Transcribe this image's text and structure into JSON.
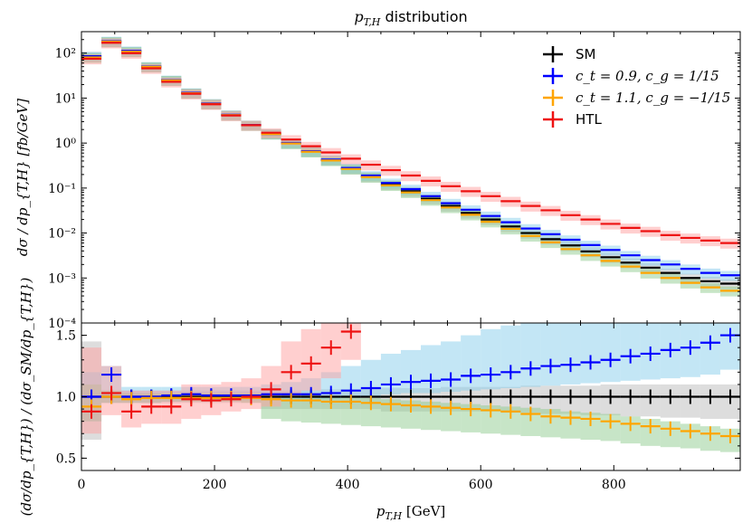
{
  "chart_data": {
    "type": "line",
    "title": "p_{T,H} distribution",
    "title_parts": {
      "math": "p",
      "sub": "T,H",
      "rest": "distribution"
    },
    "xlabel": "p_{T,H} [GeV]",
    "xlabel_parts": {
      "math": "p",
      "sub": "T,H",
      "unit": "[GeV]"
    },
    "x_ticks": [
      0,
      200,
      400,
      600,
      800
    ],
    "x_tick_labels": [
      "0",
      "200",
      "400",
      "600",
      "800"
    ],
    "xlim": [
      0,
      990
    ],
    "bin_edges": [
      0,
      30,
      60,
      90,
      120,
      150,
      180,
      210,
      240,
      270,
      300,
      330,
      360,
      390,
      420,
      450,
      480,
      510,
      540,
      570,
      600,
      630,
      660,
      690,
      720,
      750,
      780,
      810,
      840,
      870,
      900,
      930,
      960,
      990
    ],
    "top_panel": {
      "ylabel": "dσ / dp_{T,H} [fb/GeV]",
      "yscale": "log",
      "ylim": [
        0.0001,
        300
      ],
      "y_ticks": [
        0.0001,
        0.001,
        0.01,
        0.1,
        1,
        10,
        100
      ],
      "y_tick_labels": [
        "10⁻⁴",
        "10⁻³",
        "10⁻²",
        "10⁻¹",
        "10⁰",
        "10¹",
        "10²"
      ],
      "band_rel": [
        0.75,
        1.25
      ],
      "series": [
        {
          "name": "SM",
          "color": "#000000",
          "values": [
            85,
            180,
            110,
            50,
            25,
            13,
            7.5,
            4.2,
            2.5,
            1.6,
            1.0,
            0.65,
            0.42,
            0.27,
            0.18,
            0.12,
            0.085,
            0.058,
            0.04,
            0.028,
            0.02,
            0.014,
            0.01,
            0.0073,
            0.0053,
            0.0039,
            0.0029,
            0.0022,
            0.0017,
            0.0013,
            0.001,
            0.00085,
            0.00075
          ]
        },
        {
          "name": "c_t = 0.9, c_g = 1/15",
          "color": "#0000ff",
          "values": [
            85,
            185,
            112,
            50.5,
            25.2,
            13.2,
            7.6,
            4.25,
            2.53,
            1.62,
            1.01,
            0.66,
            0.43,
            0.28,
            0.19,
            0.13,
            0.095,
            0.066,
            0.046,
            0.033,
            0.024,
            0.0174,
            0.0126,
            0.0094,
            0.0071,
            0.0054,
            0.0042,
            0.0032,
            0.0025,
            0.002,
            0.0016,
            0.0013,
            0.00115
          ]
        },
        {
          "name": "c_t = 1.1, c_g = −1/15",
          "color": "#ffa500",
          "values": [
            80,
            180,
            108,
            49.5,
            24.8,
            12.9,
            7.45,
            4.18,
            2.49,
            1.6,
            0.98,
            0.64,
            0.41,
            0.265,
            0.175,
            0.115,
            0.08,
            0.054,
            0.037,
            0.0255,
            0.0178,
            0.0124,
            0.0086,
            0.0062,
            0.0044,
            0.0032,
            0.0024,
            0.0018,
            0.0013,
            0.001,
            0.00078,
            0.00062,
            0.00052
          ]
        },
        {
          "name": "HTL",
          "color": "#ee1111",
          "values": [
            75,
            170,
            100,
            46,
            23,
            12.5,
            7.3,
            4.1,
            2.5,
            1.7,
            1.2,
            0.85,
            0.62,
            0.45,
            0.33,
            0.25,
            0.19,
            0.145,
            0.11,
            0.085,
            0.066,
            0.051,
            0.04,
            0.032,
            0.025,
            0.02,
            0.016,
            0.013,
            0.011,
            0.009,
            0.0078,
            0.0068,
            0.006
          ]
        }
      ]
    },
    "bottom_panel": {
      "ylabel": "(dσ/dp_{T,H}) / (dσ_SM/dp_{T,H})",
      "ylim": [
        0.4,
        1.6
      ],
      "y_ticks": [
        0.5,
        1.0,
        1.5
      ],
      "y_tick_labels": [
        "0.5",
        "1.0",
        "1.5"
      ],
      "series": [
        {
          "name": "SM",
          "color": "#000000",
          "band_color": "#bbbbbb",
          "values": [
            1,
            1,
            1,
            1,
            1,
            1,
            1,
            1,
            1,
            1,
            1,
            1,
            1,
            1,
            1,
            1,
            1,
            1,
            1,
            1,
            1,
            1,
            1,
            1,
            1,
            1,
            1,
            1,
            1,
            1,
            1,
            1,
            1
          ],
          "band_low": [
            0.65,
            0.95,
            0.95,
            0.95,
            0.95,
            0.95,
            0.95,
            0.95,
            0.95,
            0.9,
            0.9,
            0.9,
            0.9,
            0.9,
            0.9,
            0.88,
            0.88,
            0.88,
            0.88,
            0.88,
            0.88,
            0.87,
            0.87,
            0.86,
            0.86,
            0.85,
            0.85,
            0.84,
            0.84,
            0.83,
            0.83,
            0.82,
            0.82
          ],
          "band_high": [
            1.45,
            1.05,
            1.05,
            1.05,
            1.05,
            1.05,
            1.05,
            1.05,
            1.05,
            1.05,
            1.05,
            1.05,
            1.06,
            1.06,
            1.06,
            1.07,
            1.07,
            1.07,
            1.08,
            1.08,
            1.08,
            1.08,
            1.09,
            1.09,
            1.09,
            1.09,
            1.1,
            1.1,
            1.1,
            1.1,
            1.1,
            1.1,
            1.1
          ]
        },
        {
          "name": "c_t = 0.9, c_g = 1/15",
          "color": "#0000ff",
          "band_color": "#87ceeb",
          "values": [
            1.0,
            1.18,
            1.0,
            1.0,
            1.01,
            1.02,
            1.01,
            1.01,
            1.01,
            1.02,
            1.02,
            1.02,
            1.03,
            1.05,
            1.07,
            1.1,
            1.12,
            1.13,
            1.14,
            1.17,
            1.18,
            1.2,
            1.23,
            1.25,
            1.26,
            1.28,
            1.3,
            1.33,
            1.35,
            1.38,
            1.4,
            1.44,
            1.5
          ],
          "band_low": [
            0.8,
            0.95,
            0.95,
            0.95,
            0.96,
            0.97,
            0.97,
            0.97,
            0.97,
            0.97,
            0.97,
            0.97,
            0.98,
            0.99,
            1.0,
            1.02,
            1.03,
            1.03,
            1.04,
            1.05,
            1.06,
            1.07,
            1.08,
            1.09,
            1.1,
            1.11,
            1.12,
            1.13,
            1.14,
            1.15,
            1.16,
            1.18,
            1.22
          ],
          "band_high": [
            1.2,
            1.25,
            1.08,
            1.08,
            1.08,
            1.08,
            1.08,
            1.08,
            1.08,
            1.1,
            1.12,
            1.15,
            1.2,
            1.25,
            1.3,
            1.35,
            1.38,
            1.42,
            1.45,
            1.5,
            1.55,
            1.58,
            1.6,
            1.6,
            1.6,
            1.6,
            1.6,
            1.6,
            1.6,
            1.6,
            1.6,
            1.6,
            1.6
          ]
        },
        {
          "name": "c_t = 1.1, c_g = −1/15",
          "color": "#ffa500",
          "band_color": "#8fcc8f",
          "values": [
            0.92,
            1.0,
            0.98,
            0.99,
            0.99,
            0.99,
            0.99,
            0.99,
            0.99,
            0.98,
            0.97,
            0.97,
            0.96,
            0.96,
            0.95,
            0.94,
            0.93,
            0.92,
            0.91,
            0.9,
            0.89,
            0.88,
            0.86,
            0.84,
            0.83,
            0.82,
            0.8,
            0.78,
            0.76,
            0.74,
            0.72,
            0.7,
            0.68
          ],
          "band_low": [
            0.8,
            0.95,
            0.95,
            0.95,
            0.96,
            0.96,
            0.96,
            0.96,
            0.95,
            0.82,
            0.8,
            0.79,
            0.78,
            0.77,
            0.76,
            0.75,
            0.74,
            0.73,
            0.72,
            0.71,
            0.7,
            0.69,
            0.68,
            0.67,
            0.66,
            0.65,
            0.64,
            0.62,
            0.6,
            0.59,
            0.58,
            0.56,
            0.55
          ],
          "band_high": [
            1.1,
            1.05,
            1.03,
            1.03,
            1.03,
            1.03,
            1.03,
            1.03,
            1.03,
            1.02,
            1.02,
            1.01,
            1.0,
            1.0,
            0.99,
            0.98,
            0.97,
            0.96,
            0.95,
            0.94,
            0.93,
            0.92,
            0.91,
            0.9,
            0.88,
            0.87,
            0.86,
            0.84,
            0.82,
            0.8,
            0.78,
            0.76,
            0.74
          ]
        },
        {
          "name": "HTL",
          "color": "#ee1111",
          "band_color": "#ff9f9f",
          "values": [
            0.88,
            1.03,
            0.88,
            0.92,
            0.92,
            0.98,
            0.97,
            0.98,
            1.0,
            1.06,
            1.2,
            1.27,
            1.4,
            1.53
          ],
          "band_low": [
            0.7,
            0.85,
            0.75,
            0.78,
            0.78,
            0.82,
            0.85,
            0.88,
            0.9,
            0.92,
            1.0,
            1.05,
            1.15,
            1.3
          ],
          "band_high": [
            1.4,
            1.25,
            1.05,
            1.05,
            1.05,
            1.1,
            1.1,
            1.12,
            1.15,
            1.25,
            1.45,
            1.55,
            1.6,
            1.6
          ]
        }
      ]
    },
    "legend": {
      "placement": "top-right",
      "entries": [
        {
          "label": "SM",
          "color": "#000000",
          "style": "sans"
        },
        {
          "label": "c_t = 0.9, c_g = 1/15",
          "color": "#0000ff",
          "style": "math"
        },
        {
          "label": "c_t = 1.1, c_g = −1/15",
          "color": "#ffa500",
          "style": "math"
        },
        {
          "label": "HTL",
          "color": "#ee1111",
          "style": "sans"
        }
      ]
    }
  }
}
